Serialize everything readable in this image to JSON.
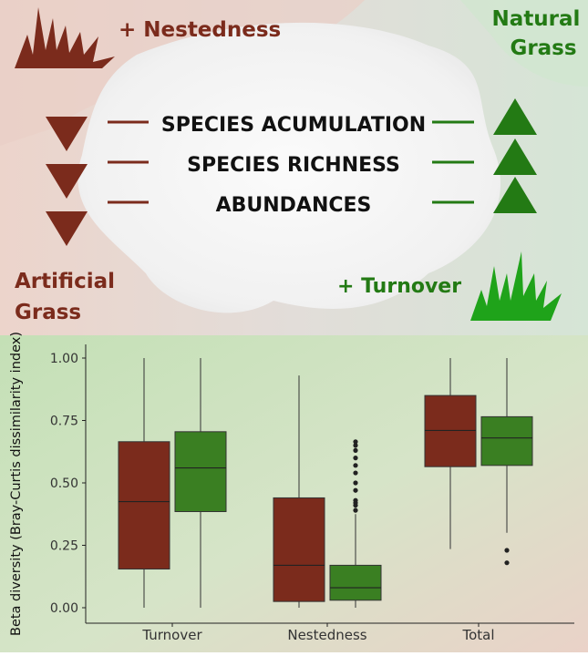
{
  "infographic": {
    "artificial_color": "#7b2b1c",
    "natural_color": "#237a14",
    "nestedness_label": "+ Nestedness",
    "turnover_label": "+ Turnover",
    "natural_grass_line1": "Natural",
    "natural_grass_line2": "Grass",
    "artificial_grass_line1": "Artificial",
    "artificial_grass_line2": "Grass",
    "rows": [
      {
        "label": "SPECIES ACUMULATION",
        "artificial": "decrease",
        "natural": "increase"
      },
      {
        "label": "SPECIES RICHNESS",
        "artificial": "decrease",
        "natural": "increase"
      },
      {
        "label": "ABUNDANCES",
        "artificial": "decrease",
        "natural": "increase"
      }
    ]
  },
  "chart_data": {
    "type": "boxplot",
    "ylabel": "Beta diversity (Bray-Curtis dissimilarity index)",
    "xlabel": "",
    "ylim": [
      0,
      1
    ],
    "yticks": [
      "0.00",
      "0.25",
      "0.50",
      "0.75",
      "1.00"
    ],
    "ytick_values": [
      0,
      0.25,
      0.5,
      0.75,
      1.0
    ],
    "categories": [
      "Turnover",
      "Nestedness",
      "Total"
    ],
    "grid": false,
    "series": [
      {
        "group": "Artificial Grass",
        "color": "#7b2b1c",
        "boxes": [
          {
            "category": "Turnover",
            "min": 0.0,
            "q1": 0.155,
            "median": 0.425,
            "q3": 0.665,
            "max": 1.0,
            "outliers": []
          },
          {
            "category": "Nestedness",
            "min": 0.0,
            "q1": 0.025,
            "median": 0.17,
            "q3": 0.44,
            "max": 0.93,
            "outliers": []
          },
          {
            "category": "Total",
            "min": 0.235,
            "q1": 0.565,
            "median": 0.71,
            "q3": 0.85,
            "max": 1.0,
            "outliers": []
          }
        ]
      },
      {
        "group": "Natural Grass",
        "color": "#3a7f22",
        "boxes": [
          {
            "category": "Turnover",
            "min": 0.0,
            "q1": 0.385,
            "median": 0.56,
            "q3": 0.705,
            "max": 1.0,
            "outliers": []
          },
          {
            "category": "Nestedness",
            "min": 0.0,
            "q1": 0.03,
            "median": 0.08,
            "q3": 0.17,
            "max": 0.375,
            "outliers": [
              0.39,
              0.41,
              0.42,
              0.43,
              0.47,
              0.5,
              0.54,
              0.57,
              0.6,
              0.63,
              0.65,
              0.665
            ]
          },
          {
            "category": "Total",
            "min": 0.3,
            "q1": 0.57,
            "median": 0.68,
            "q3": 0.765,
            "max": 1.0,
            "outliers": [
              0.23,
              0.18
            ]
          }
        ]
      }
    ]
  }
}
